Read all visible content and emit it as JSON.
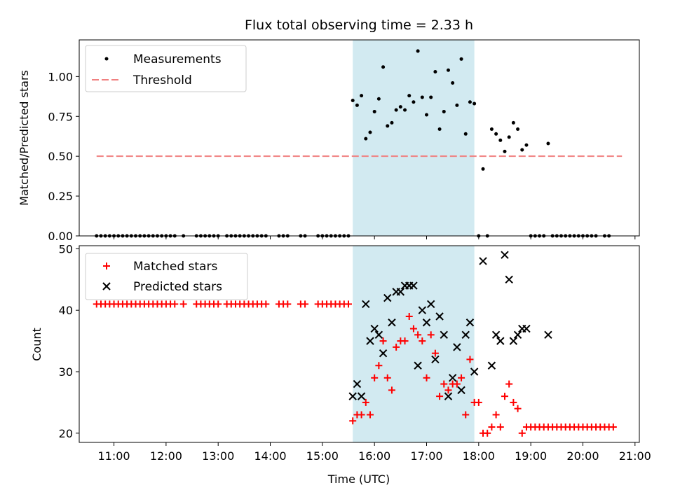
{
  "colors": {
    "shade": "#add8e6",
    "measurement": "#000000",
    "threshold": "#f08080",
    "matched": "#ff0000",
    "predicted": "#000000"
  },
  "chart_data": [
    {
      "type": "scatter",
      "title": "Flux total observing time = 2.33 h",
      "ylabel": "Matched/Predicted stars",
      "xlabel": "",
      "xlim": [
        "10:20",
        "21:05"
      ],
      "ylim": [
        0,
        1.23
      ],
      "yticks": [
        "0.00",
        "0.25",
        "0.50",
        "0.75",
        "1.00"
      ],
      "grid": false,
      "legend_position": "upper left",
      "shaded_span": [
        "15:35",
        "17:55"
      ],
      "series": [
        {
          "name": "Measurements",
          "marker": "dot",
          "points": [
            [
              "10:40",
              0
            ],
            [
              "10:45",
              0
            ],
            [
              "10:50",
              0
            ],
            [
              "10:55",
              0
            ],
            [
              "11:00",
              0
            ],
            [
              "11:05",
              0
            ],
            [
              "11:10",
              0
            ],
            [
              "11:15",
              0
            ],
            [
              "11:20",
              0
            ],
            [
              "11:25",
              0
            ],
            [
              "11:30",
              0
            ],
            [
              "11:35",
              0
            ],
            [
              "11:40",
              0
            ],
            [
              "11:45",
              0
            ],
            [
              "11:50",
              0
            ],
            [
              "11:55",
              0
            ],
            [
              "12:00",
              0
            ],
            [
              "12:05",
              0
            ],
            [
              "12:10",
              0
            ],
            [
              "12:20",
              0
            ],
            [
              "12:35",
              0
            ],
            [
              "12:40",
              0
            ],
            [
              "12:45",
              0
            ],
            [
              "12:50",
              0
            ],
            [
              "12:55",
              0
            ],
            [
              "13:00",
              0
            ],
            [
              "13:10",
              0
            ],
            [
              "13:15",
              0
            ],
            [
              "13:20",
              0
            ],
            [
              "13:25",
              0
            ],
            [
              "13:30",
              0
            ],
            [
              "13:35",
              0
            ],
            [
              "13:40",
              0
            ],
            [
              "13:45",
              0
            ],
            [
              "13:50",
              0
            ],
            [
              "13:55",
              0
            ],
            [
              "14:10",
              0
            ],
            [
              "14:15",
              0
            ],
            [
              "14:20",
              0
            ],
            [
              "14:35",
              0
            ],
            [
              "14:40",
              0
            ],
            [
              "14:55",
              0
            ],
            [
              "15:00",
              0
            ],
            [
              "15:05",
              0
            ],
            [
              "15:10",
              0
            ],
            [
              "15:15",
              0
            ],
            [
              "15:20",
              0
            ],
            [
              "15:25",
              0
            ],
            [
              "15:30",
              0
            ],
            [
              "15:35",
              0.85
            ],
            [
              "15:40",
              0.82
            ],
            [
              "15:45",
              0.88
            ],
            [
              "15:50",
              0.61
            ],
            [
              "15:55",
              0.65
            ],
            [
              "16:00",
              0.78
            ],
            [
              "16:05",
              0.86
            ],
            [
              "16:10",
              1.06
            ],
            [
              "16:15",
              0.69
            ],
            [
              "16:20",
              0.71
            ],
            [
              "16:25",
              0.79
            ],
            [
              "16:30",
              0.81
            ],
            [
              "16:35",
              0.79
            ],
            [
              "16:40",
              0.88
            ],
            [
              "16:45",
              0.84
            ],
            [
              "16:50",
              1.16
            ],
            [
              "16:55",
              0.87
            ],
            [
              "17:00",
              0.76
            ],
            [
              "17:05",
              0.87
            ],
            [
              "17:10",
              1.03
            ],
            [
              "17:15",
              0.67
            ],
            [
              "17:20",
              0.78
            ],
            [
              "17:25",
              1.04
            ],
            [
              "17:30",
              0.96
            ],
            [
              "17:35",
              0.82
            ],
            [
              "17:40",
              1.11
            ],
            [
              "17:45",
              0.64
            ],
            [
              "17:50",
              0.84
            ],
            [
              "17:55",
              0.83
            ],
            [
              "18:00",
              0
            ],
            [
              "18:05",
              0.42
            ],
            [
              "18:10",
              0
            ],
            [
              "18:15",
              0.67
            ],
            [
              "18:20",
              0.64
            ],
            [
              "18:25",
              0.6
            ],
            [
              "18:30",
              0.53
            ],
            [
              "18:35",
              0.62
            ],
            [
              "18:40",
              0.71
            ],
            [
              "18:45",
              0.67
            ],
            [
              "18:50",
              0.54
            ],
            [
              "18:55",
              0.57
            ],
            [
              "19:00",
              0
            ],
            [
              "19:05",
              0
            ],
            [
              "19:10",
              0
            ],
            [
              "19:15",
              0
            ],
            [
              "19:20",
              0.58
            ],
            [
              "19:25",
              0
            ],
            [
              "19:30",
              0
            ],
            [
              "19:35",
              0
            ],
            [
              "19:40",
              0
            ],
            [
              "19:45",
              0
            ],
            [
              "19:50",
              0
            ],
            [
              "19:55",
              0
            ],
            [
              "20:00",
              0
            ],
            [
              "20:05",
              0
            ],
            [
              "20:10",
              0
            ],
            [
              "20:15",
              0
            ],
            [
              "20:25",
              0
            ],
            [
              "20:30",
              0
            ]
          ]
        },
        {
          "name": "Threshold",
          "style": "dashed",
          "points": [
            [
              "10:40",
              0.5
            ],
            [
              "20:45",
              0.5
            ]
          ]
        }
      ]
    },
    {
      "type": "scatter",
      "title": "",
      "xlabel": "Time (UTC)",
      "ylabel": "Count",
      "xlim": [
        "10:20",
        "21:05"
      ],
      "ylim": [
        18.5,
        50.5
      ],
      "yticks": [
        "20",
        "30",
        "40",
        "50"
      ],
      "xticks": [
        "11:00",
        "12:00",
        "13:00",
        "14:00",
        "15:00",
        "16:00",
        "17:00",
        "18:00",
        "19:00",
        "20:00",
        "21:00"
      ],
      "grid": false,
      "legend_position": "upper left",
      "shaded_span": [
        "15:35",
        "17:55"
      ],
      "series": [
        {
          "name": "Matched stars",
          "marker": "plus",
          "points": [
            [
              "10:40",
              41
            ],
            [
              "10:45",
              41
            ],
            [
              "10:50",
              41
            ],
            [
              "10:55",
              41
            ],
            [
              "11:00",
              41
            ],
            [
              "11:05",
              41
            ],
            [
              "11:10",
              41
            ],
            [
              "11:15",
              41
            ],
            [
              "11:20",
              41
            ],
            [
              "11:25",
              41
            ],
            [
              "11:30",
              41
            ],
            [
              "11:35",
              41
            ],
            [
              "11:40",
              41
            ],
            [
              "11:45",
              41
            ],
            [
              "11:50",
              41
            ],
            [
              "11:55",
              41
            ],
            [
              "12:00",
              41
            ],
            [
              "12:05",
              41
            ],
            [
              "12:10",
              41
            ],
            [
              "12:20",
              41
            ],
            [
              "12:35",
              41
            ],
            [
              "12:40",
              41
            ],
            [
              "12:45",
              41
            ],
            [
              "12:50",
              41
            ],
            [
              "12:55",
              41
            ],
            [
              "13:00",
              41
            ],
            [
              "13:10",
              41
            ],
            [
              "13:15",
              41
            ],
            [
              "13:20",
              41
            ],
            [
              "13:25",
              41
            ],
            [
              "13:30",
              41
            ],
            [
              "13:35",
              41
            ],
            [
              "13:40",
              41
            ],
            [
              "13:45",
              41
            ],
            [
              "13:50",
              41
            ],
            [
              "13:55",
              41
            ],
            [
              "14:10",
              41
            ],
            [
              "14:15",
              41
            ],
            [
              "14:20",
              41
            ],
            [
              "14:35",
              41
            ],
            [
              "14:40",
              41
            ],
            [
              "14:55",
              41
            ],
            [
              "15:00",
              41
            ],
            [
              "15:05",
              41
            ],
            [
              "15:10",
              41
            ],
            [
              "15:15",
              41
            ],
            [
              "15:20",
              41
            ],
            [
              "15:25",
              41
            ],
            [
              "15:30",
              41
            ],
            [
              "15:35",
              22
            ],
            [
              "15:40",
              23
            ],
            [
              "15:45",
              23
            ],
            [
              "15:50",
              25
            ],
            [
              "15:55",
              23
            ],
            [
              "16:00",
              29
            ],
            [
              "16:05",
              31
            ],
            [
              "16:10",
              35
            ],
            [
              "16:15",
              29
            ],
            [
              "16:20",
              27
            ],
            [
              "16:25",
              34
            ],
            [
              "16:30",
              35
            ],
            [
              "16:35",
              35
            ],
            [
              "16:40",
              39
            ],
            [
              "16:45",
              37
            ],
            [
              "16:50",
              36
            ],
            [
              "16:55",
              35
            ],
            [
              "17:00",
              29
            ],
            [
              "17:05",
              36
            ],
            [
              "17:10",
              33
            ],
            [
              "17:15",
              26
            ],
            [
              "17:20",
              28
            ],
            [
              "17:25",
              27
            ],
            [
              "17:30",
              28
            ],
            [
              "17:35",
              28
            ],
            [
              "17:40",
              29
            ],
            [
              "17:45",
              23
            ],
            [
              "17:50",
              32
            ],
            [
              "17:55",
              25
            ],
            [
              "18:00",
              25
            ],
            [
              "18:05",
              20
            ],
            [
              "18:10",
              20
            ],
            [
              "18:15",
              21
            ],
            [
              "18:20",
              23
            ],
            [
              "18:25",
              21
            ],
            [
              "18:30",
              26
            ],
            [
              "18:35",
              28
            ],
            [
              "18:40",
              25
            ],
            [
              "18:45",
              24
            ],
            [
              "18:50",
              20
            ],
            [
              "18:55",
              21
            ],
            [
              "19:00",
              21
            ],
            [
              "19:05",
              21
            ],
            [
              "19:10",
              21
            ],
            [
              "19:15",
              21
            ],
            [
              "19:20",
              21
            ],
            [
              "19:25",
              21
            ],
            [
              "19:30",
              21
            ],
            [
              "19:35",
              21
            ],
            [
              "19:40",
              21
            ],
            [
              "19:45",
              21
            ],
            [
              "19:50",
              21
            ],
            [
              "19:55",
              21
            ],
            [
              "20:00",
              21
            ],
            [
              "20:05",
              21
            ],
            [
              "20:10",
              21
            ],
            [
              "20:15",
              21
            ],
            [
              "20:20",
              21
            ],
            [
              "20:25",
              21
            ],
            [
              "20:30",
              21
            ],
            [
              "20:35",
              21
            ]
          ]
        },
        {
          "name": "Predicted stars",
          "marker": "x",
          "points": [
            [
              "15:35",
              26
            ],
            [
              "15:40",
              28
            ],
            [
              "15:45",
              26
            ],
            [
              "15:50",
              41
            ],
            [
              "15:55",
              35
            ],
            [
              "16:00",
              37
            ],
            [
              "16:05",
              36
            ],
            [
              "16:10",
              33
            ],
            [
              "16:15",
              42
            ],
            [
              "16:20",
              38
            ],
            [
              "16:25",
              43
            ],
            [
              "16:30",
              43
            ],
            [
              "16:35",
              44
            ],
            [
              "16:40",
              44
            ],
            [
              "16:45",
              44
            ],
            [
              "16:50",
              31
            ],
            [
              "16:55",
              40
            ],
            [
              "17:00",
              38
            ],
            [
              "17:05",
              41
            ],
            [
              "17:10",
              32
            ],
            [
              "17:15",
              39
            ],
            [
              "17:20",
              36
            ],
            [
              "17:25",
              26
            ],
            [
              "17:30",
              29
            ],
            [
              "17:35",
              34
            ],
            [
              "17:40",
              27
            ],
            [
              "17:45",
              36
            ],
            [
              "17:50",
              38
            ],
            [
              "17:55",
              30
            ],
            [
              "18:05",
              48
            ],
            [
              "18:15",
              31
            ],
            [
              "18:20",
              36
            ],
            [
              "18:25",
              35
            ],
            [
              "18:30",
              49
            ],
            [
              "18:35",
              45
            ],
            [
              "18:40",
              35
            ],
            [
              "18:45",
              36
            ],
            [
              "18:50",
              37
            ],
            [
              "18:55",
              37
            ],
            [
              "19:20",
              36
            ]
          ]
        }
      ]
    }
  ]
}
